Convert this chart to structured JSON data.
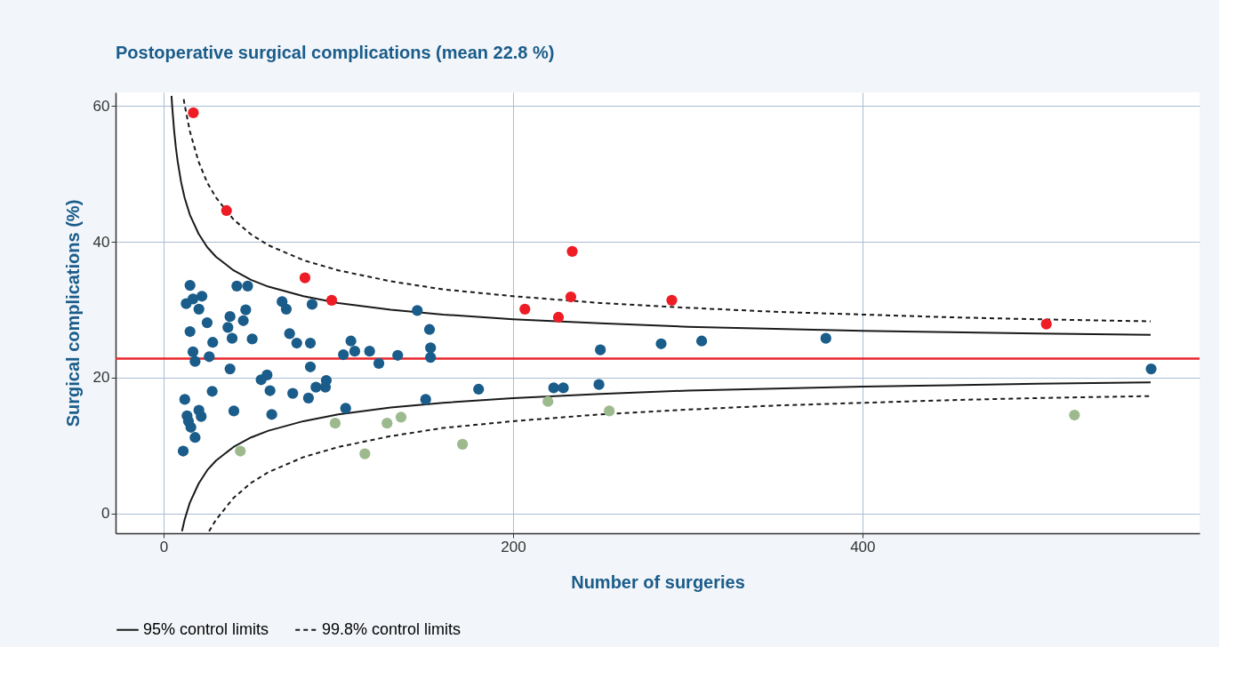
{
  "chart_data": {
    "type": "scatter",
    "title": "Postoperative surgical complications (mean 22.8 %)",
    "xlabel": "Number of surgeries",
    "ylabel": "Surgical complications (%)",
    "xlim": [
      -27.5,
      593
    ],
    "xticks": [
      0,
      200,
      400
    ],
    "ylim": [
      -2.9,
      62
    ],
    "yticks": [
      0,
      20,
      40,
      60
    ],
    "grid": true,
    "legend": "bottom",
    "marker": "circle",
    "series": [
      {
        "color": "#1a5c8a",
        "x": [
          15.1,
          12.9,
          16.8,
          21.9,
          20.2,
          24.9,
          15.1,
          28.1,
          16.8,
          18.0,
          26.1,
          38.0,
          38.0,
          36.8,
          39.2,
          41.9,
          48.1,
          47.0,
          45.6,
          50.7,
          27.8,
          12.1,
          13.4,
          20.2,
          21.5,
          14.2,
          15.6,
          18.0,
          11.2,
          40.2,
          61.9,
          60.9,
          55.8,
          59.2,
          73.9,
          67.8,
          70.2,
          72.1,
          76.2,
          85.0,
          84.0,
          84.0,
          82.9,
          87.2,
          92.6,
          93.1,
          102.9,
          104.2,
          145.2,
          152.2,
          152.8,
          152.8,
          150.0,
          134.0,
          123.2,
          117.9,
          107.2,
          109.4,
          180.3,
          250.0,
          284.8,
          308.0,
          223.3,
          228.8,
          249.2,
          379.1,
          565.3
        ],
        "values": [
          33.6,
          30.9,
          31.6,
          32.0,
          30.1,
          28.1,
          26.8,
          25.2,
          23.8,
          22.4,
          23.1,
          21.3,
          29.0,
          27.4,
          25.8,
          33.5,
          33.5,
          30.0,
          28.4,
          25.7,
          18.0,
          16.8,
          14.4,
          15.2,
          14.3,
          13.6,
          12.7,
          11.2,
          9.2,
          15.1,
          14.6,
          18.1,
          19.7,
          20.4,
          17.7,
          31.2,
          30.1,
          26.5,
          25.1,
          30.8,
          25.1,
          21.6,
          17.0,
          18.6,
          18.6,
          19.6,
          23.4,
          15.5,
          29.9,
          27.1,
          24.4,
          23.0,
          16.8,
          23.3,
          22.1,
          23.9,
          25.4,
          23.9,
          18.3,
          24.1,
          25.0,
          25.4,
          18.5,
          18.5,
          19.0,
          25.8,
          21.3
        ]
      },
      {
        "color": "#ee1c25",
        "x": [
          17.0,
          36.0,
          80.9,
          96.2,
          206.8,
          226.0,
          233.1,
          233.9,
          290.9,
          505.3
        ],
        "values": [
          59.0,
          44.6,
          34.7,
          31.4,
          30.1,
          28.9,
          31.9,
          38.6,
          31.4,
          27.9
        ]
      },
      {
        "color": "#9dba8f",
        "x": [
          43.9,
          98.2,
          115.2,
          127.9,
          135.9,
          171.1,
          220.0,
          255.1,
          521.4
        ],
        "values": [
          9.2,
          13.3,
          8.8,
          13.3,
          14.2,
          10.2,
          16.5,
          15.1,
          14.5
        ]
      },
      {
        "type": "line",
        "name": "95% control limits",
        "color": "#1a1a1a",
        "line_style": "solid",
        "marker": "none",
        "x": [
          4.5,
          5,
          6,
          7,
          8,
          10,
          12,
          15,
          20,
          25,
          30,
          40,
          50,
          60,
          80,
          100,
          130,
          160,
          200,
          250,
          300,
          350,
          400,
          450,
          500,
          565
        ],
        "values": [
          61.5,
          59.6,
          56.4,
          53.9,
          51.9,
          48.8,
          46.5,
          44.0,
          41.2,
          39.2,
          37.8,
          35.8,
          34.4,
          33.4,
          32.0,
          31.0,
          30.0,
          29.3,
          28.6,
          28.0,
          27.5,
          27.2,
          26.9,
          26.7,
          26.5,
          26.3
        ]
      },
      {
        "type": "line",
        "color": "#1a1a1a",
        "line_style": "solid",
        "marker": "none",
        "x": [
          10.5,
          12,
          15,
          20,
          25,
          30,
          40,
          50,
          60,
          80,
          100,
          130,
          160,
          200,
          250,
          300,
          350,
          400,
          450,
          500,
          565
        ],
        "values": [
          -2.6,
          -0.9,
          1.6,
          4.4,
          6.4,
          7.8,
          9.8,
          11.2,
          12.2,
          13.6,
          14.6,
          15.6,
          16.3,
          17.0,
          17.6,
          18.1,
          18.4,
          18.7,
          18.9,
          19.1,
          19.3
        ]
      },
      {
        "type": "line",
        "name": "99.8% control limits",
        "color": "#1a1a1a",
        "line_style": "dashed",
        "marker": "none",
        "x": [
          11.5,
          12,
          15,
          20,
          25,
          30,
          40,
          50,
          60,
          80,
          100,
          130,
          160,
          200,
          250,
          300,
          350,
          400,
          450,
          500,
          565
        ],
        "values": [
          61.0,
          60.2,
          56.3,
          51.8,
          48.7,
          46.5,
          43.3,
          41.1,
          39.5,
          37.3,
          35.8,
          34.2,
          33.0,
          32.0,
          31.0,
          30.3,
          29.7,
          29.3,
          28.9,
          28.6,
          28.3
        ]
      },
      {
        "type": "line",
        "color": "#1a1a1a",
        "line_style": "dashed",
        "marker": "none",
        "x": [
          26,
          30,
          40,
          50,
          60,
          80,
          100,
          130,
          160,
          200,
          250,
          300,
          350,
          400,
          450,
          500,
          565
        ],
        "values": [
          -2.6,
          -0.9,
          2.3,
          4.5,
          6.1,
          8.3,
          9.8,
          11.4,
          12.6,
          13.6,
          14.6,
          15.3,
          15.9,
          16.3,
          16.7,
          17.0,
          17.3
        ]
      }
    ],
    "ref_lines": [
      {
        "axis": "y",
        "value": 22.8,
        "color": "#e8262b"
      }
    ]
  }
}
